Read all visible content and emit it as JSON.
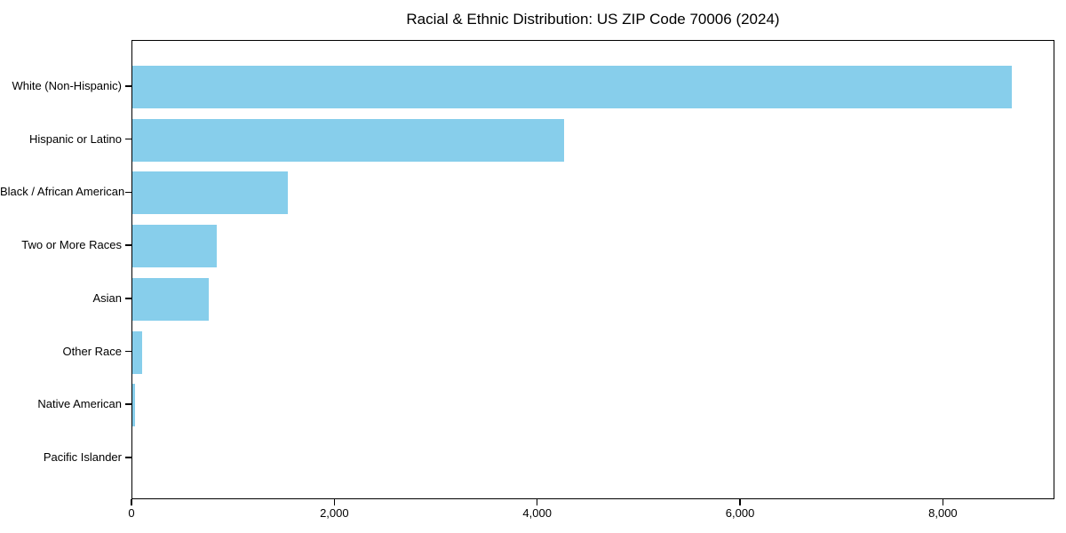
{
  "figure": {
    "background": "#ffffff",
    "frame_color": "#000000",
    "text_color": "#000000"
  },
  "chart_data": {
    "type": "bar",
    "orientation": "horizontal",
    "title": "Racial & Ethnic Distribution: US ZIP Code 70006 (2024)",
    "xlabel": "",
    "ylabel": "",
    "categories": [
      "White (Non-Hispanic)",
      "Hispanic or Latino",
      "Black / African American",
      "Two or More Races",
      "Asian",
      "Other Race",
      "Native American",
      "Pacific Islander"
    ],
    "values": [
      8670,
      4260,
      1530,
      830,
      750,
      100,
      30,
      0
    ],
    "xlim": [
      0,
      9100
    ],
    "x_ticks": [
      0,
      2000,
      4000,
      6000,
      8000
    ],
    "x_tick_labels": [
      "0",
      "2,000",
      "4,000",
      "6,000",
      "8,000"
    ],
    "bar_color": "#87CEEB",
    "grid": false,
    "legend": null
  }
}
